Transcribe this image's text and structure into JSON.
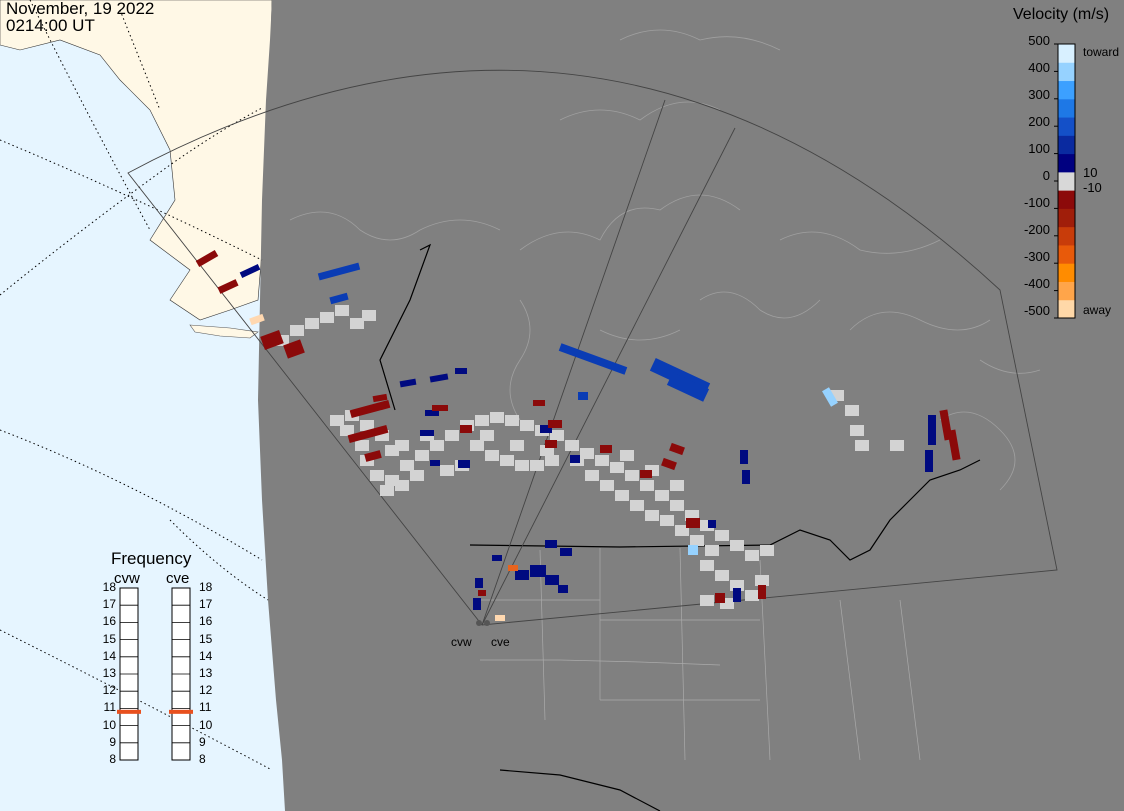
{
  "header": {
    "date": "November, 19 2022",
    "time": "0214:00 UT"
  },
  "colorbar": {
    "title": "Velocity (m/s)",
    "tick_labels": [
      "500",
      "400",
      "300",
      "200",
      "100",
      "0",
      "-100",
      "-200",
      "-300",
      "-400",
      "-500"
    ],
    "inner_labels": [
      "10",
      "-10"
    ],
    "top_label": "toward",
    "bottom_label": "away",
    "colors": [
      "#ffd8a8",
      "#ffa54a",
      "#ff8c00",
      "#e85a0a",
      "#c83c0a",
      "#a01e0a",
      "#8c0a0a",
      "#d8d8d8",
      "#000080",
      "#0a2aa0",
      "#1450c8",
      "#1e78e6",
      "#3ca0ff",
      "#96d2ff",
      "#d8f0ff"
    ]
  },
  "frequency": {
    "title": "Frequency",
    "radars": [
      "cvw",
      "cve"
    ],
    "scale": [
      "18",
      "17",
      "16",
      "15",
      "14",
      "13",
      "12",
      "11",
      "10",
      "9",
      "8"
    ],
    "values_mhz": [
      10.8,
      10.8
    ],
    "marker_color": "#e8501e"
  },
  "map": {
    "radar_labels": [
      "cvw",
      "cve"
    ],
    "ocean_color": "#e6f5ff",
    "land_color": "#fff8e6",
    "night_color": "#808080",
    "ground_scatter_color": "#d3d3d3",
    "velocity_colors": {
      "away_dark": "#8b0a0a",
      "toward_dark": "#000a80",
      "toward_mid": "#0a3cb4",
      "toward_light": "#96d2ff",
      "away_light": "#ffd8b0",
      "away_orange": "#e8641e"
    }
  }
}
